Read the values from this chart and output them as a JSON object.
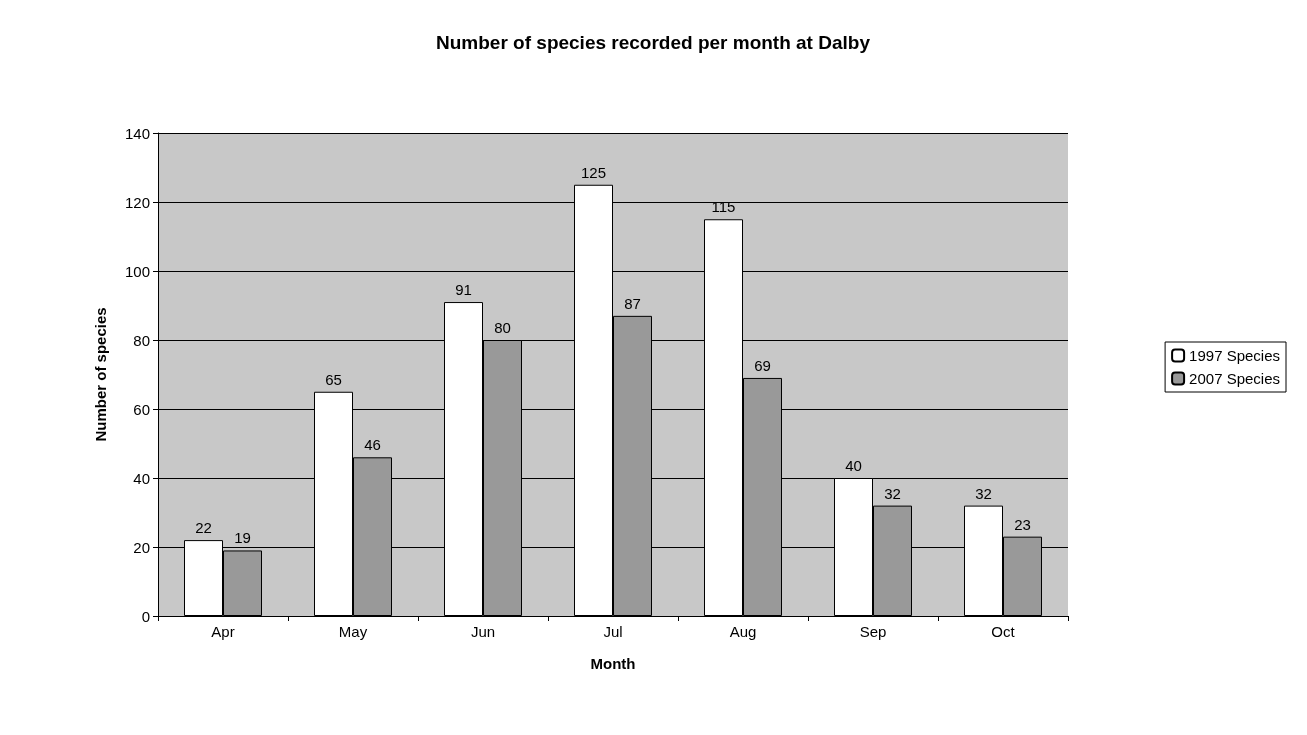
{
  "chart_data": {
    "type": "bar",
    "title": "Number of species recorded per month at Dalby",
    "xlabel": "Month",
    "ylabel": "Number of species",
    "categories": [
      "Apr",
      "May",
      "Jun",
      "Jul",
      "Aug",
      "Sep",
      "Oct"
    ],
    "series": [
      {
        "name": "1997 Species",
        "color": "#ffffff",
        "values": [
          22,
          65,
          91,
          125,
          115,
          40,
          32
        ]
      },
      {
        "name": "2007 Species",
        "color": "#999999",
        "values": [
          19,
          46,
          80,
          87,
          69,
          32,
          23
        ]
      }
    ],
    "ylim": [
      0,
      140
    ],
    "yticks": [
      0,
      20,
      40,
      60,
      80,
      100,
      120,
      140
    ],
    "grid": "y",
    "legend": "right",
    "data_labels": true
  }
}
